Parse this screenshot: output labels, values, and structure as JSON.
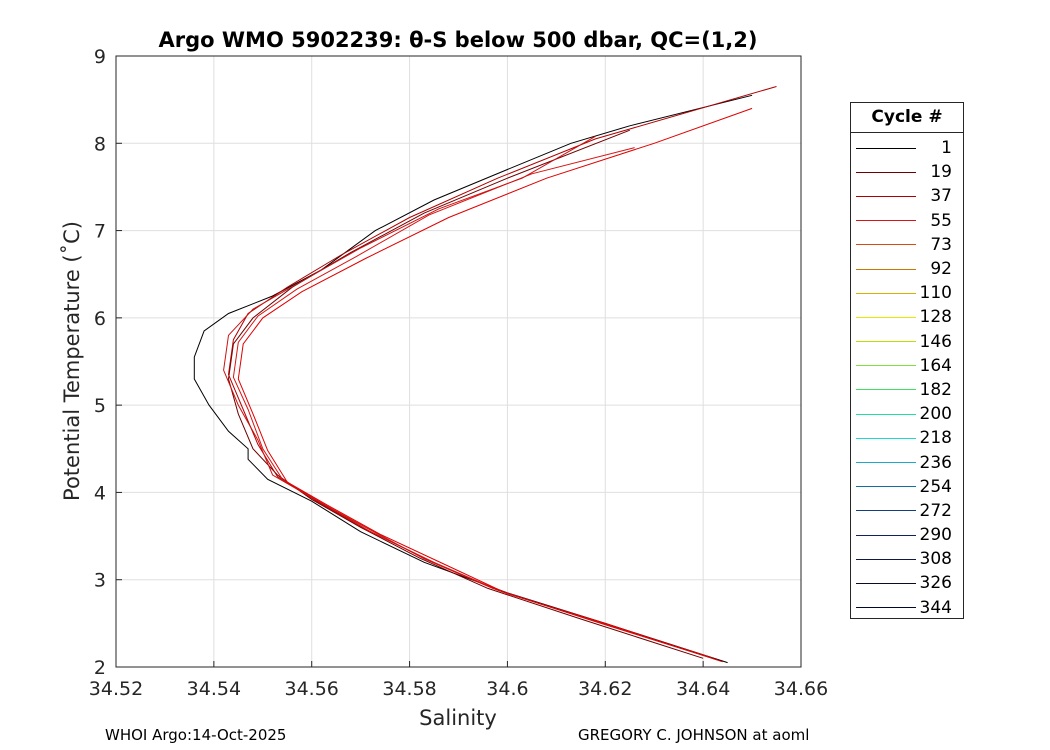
{
  "chart_data": {
    "type": "line",
    "title": "Argo WMO 5902239: θ-S below 500 dbar,  QC=(1,2)",
    "xlabel": "Salinity",
    "ylabel": "Potential Temperature (˚C)",
    "xlim": [
      34.52,
      34.66
    ],
    "ylim": [
      2,
      9
    ],
    "xticks": [
      34.52,
      34.54,
      34.56,
      34.58,
      34.6,
      34.62,
      34.64,
      34.66
    ],
    "xtick_labels": [
      "34.52",
      "34.54",
      "34.56",
      "34.58",
      "34.6",
      "34.62",
      "34.64",
      "34.66"
    ],
    "yticks": [
      2,
      3,
      4,
      5,
      6,
      7,
      8,
      9
    ],
    "ytick_labels": [
      "2",
      "3",
      "4",
      "5",
      "6",
      "7",
      "8",
      "9"
    ],
    "grid": true,
    "legend": {
      "title": "Cycle #",
      "placement": "right, outside axes",
      "entries": [
        {
          "label": "1",
          "color": "#000000"
        },
        {
          "label": "19",
          "color": "#6e0000"
        },
        {
          "label": "37",
          "color": "#b00000"
        },
        {
          "label": "55",
          "color": "#d81414"
        },
        {
          "label": "73",
          "color": "#d84a14"
        },
        {
          "label": "92",
          "color": "#c87800"
        },
        {
          "label": "110",
          "color": "#d8b000"
        },
        {
          "label": "128",
          "color": "#e8e800"
        },
        {
          "label": "146",
          "color": "#b8e000"
        },
        {
          "label": "164",
          "color": "#80e040"
        },
        {
          "label": "182",
          "color": "#40e060"
        },
        {
          "label": "200",
          "color": "#20e0a0"
        },
        {
          "label": "218",
          "color": "#20d8d0"
        },
        {
          "label": "236",
          "color": "#20a8c8"
        },
        {
          "label": "254",
          "color": "#1070a0"
        },
        {
          "label": "272",
          "color": "#104080"
        },
        {
          "label": "290",
          "color": "#102060"
        },
        {
          "label": "308",
          "color": "#101848"
        },
        {
          "label": "326",
          "color": "#080c28"
        },
        {
          "label": "344",
          "color": "#000830"
        }
      ]
    },
    "series": [
      {
        "color": "#000000",
        "points": [
          [
            34.645,
            2.05
          ],
          [
            34.62,
            2.5
          ],
          [
            34.6,
            2.85
          ],
          [
            34.583,
            3.2
          ],
          [
            34.57,
            3.55
          ],
          [
            34.56,
            3.9
          ],
          [
            34.551,
            4.15
          ],
          [
            34.547,
            4.38
          ],
          [
            34.547,
            4.5
          ],
          [
            34.543,
            4.7
          ],
          [
            34.539,
            5.0
          ],
          [
            34.536,
            5.3
          ],
          [
            34.536,
            5.55
          ],
          [
            34.538,
            5.85
          ],
          [
            34.543,
            6.05
          ],
          [
            34.552,
            6.25
          ],
          [
            34.562,
            6.55
          ],
          [
            34.573,
            7.0
          ],
          [
            34.585,
            7.35
          ],
          [
            34.6,
            7.7
          ],
          [
            34.613,
            8.0
          ],
          [
            34.625,
            8.2
          ],
          [
            34.65,
            8.55
          ]
        ]
      },
      {
        "color": "#6e0000",
        "points": [
          [
            34.64,
            2.1
          ],
          [
            34.615,
            2.55
          ],
          [
            34.596,
            2.9
          ],
          [
            34.582,
            3.25
          ],
          [
            34.57,
            3.6
          ],
          [
            34.56,
            3.92
          ],
          [
            34.553,
            4.2
          ],
          [
            34.548,
            4.5
          ],
          [
            34.545,
            4.9
          ],
          [
            34.543,
            5.3
          ],
          [
            34.544,
            5.7
          ],
          [
            34.548,
            6.0
          ],
          [
            34.556,
            6.35
          ],
          [
            34.568,
            6.75
          ],
          [
            34.583,
            7.2
          ],
          [
            34.6,
            7.6
          ],
          [
            34.625,
            8.15
          ]
        ]
      },
      {
        "color": "#b00000",
        "points": [
          [
            34.643,
            2.08
          ],
          [
            34.618,
            2.52
          ],
          [
            34.598,
            2.88
          ],
          [
            34.584,
            3.22
          ],
          [
            34.571,
            3.58
          ],
          [
            34.561,
            3.9
          ],
          [
            34.553,
            4.18
          ],
          [
            34.549,
            4.55
          ],
          [
            34.546,
            4.95
          ],
          [
            34.543,
            5.35
          ],
          [
            34.544,
            5.75
          ],
          [
            34.547,
            6.05
          ],
          [
            34.555,
            6.35
          ],
          [
            34.566,
            6.72
          ],
          [
            34.58,
            7.15
          ],
          [
            34.598,
            7.6
          ],
          [
            34.618,
            8.05
          ],
          [
            34.655,
            8.65
          ]
        ]
      },
      {
        "color": "#d81414",
        "points": [
          [
            34.642,
            2.1
          ],
          [
            34.617,
            2.54
          ],
          [
            34.599,
            2.86
          ],
          [
            34.585,
            3.2
          ],
          [
            34.572,
            3.55
          ],
          [
            34.562,
            3.88
          ],
          [
            34.554,
            4.15
          ],
          [
            34.55,
            4.5
          ],
          [
            34.547,
            4.95
          ],
          [
            34.544,
            5.32
          ],
          [
            34.545,
            5.72
          ],
          [
            34.549,
            6.02
          ],
          [
            34.557,
            6.33
          ],
          [
            34.569,
            6.7
          ],
          [
            34.584,
            7.18
          ],
          [
            34.605,
            7.65
          ],
          [
            34.626,
            7.95
          ]
        ]
      },
      {
        "color": "#cc1111",
        "points": [
          [
            34.641,
            2.12
          ],
          [
            34.616,
            2.56
          ],
          [
            34.597,
            2.9
          ],
          [
            34.583,
            3.24
          ],
          [
            34.571,
            3.6
          ],
          [
            34.56,
            3.94
          ],
          [
            34.552,
            4.2
          ],
          [
            34.549,
            4.6
          ],
          [
            34.545,
            5.0
          ],
          [
            34.542,
            5.4
          ],
          [
            34.543,
            5.8
          ],
          [
            34.548,
            6.1
          ],
          [
            34.558,
            6.42
          ],
          [
            34.57,
            6.8
          ],
          [
            34.586,
            7.25
          ],
          [
            34.603,
            7.6
          ],
          [
            34.618,
            8.08
          ]
        ]
      },
      {
        "color": "#e00000",
        "points": [
          [
            34.644,
            2.06
          ],
          [
            34.62,
            2.5
          ],
          [
            34.6,
            2.84
          ],
          [
            34.587,
            3.18
          ],
          [
            34.574,
            3.52
          ],
          [
            34.563,
            3.86
          ],
          [
            34.555,
            4.12
          ],
          [
            34.551,
            4.48
          ],
          [
            34.548,
            4.9
          ],
          [
            34.545,
            5.3
          ],
          [
            34.546,
            5.7
          ],
          [
            34.55,
            6.0
          ],
          [
            34.558,
            6.3
          ],
          [
            34.571,
            6.68
          ],
          [
            34.588,
            7.15
          ],
          [
            34.608,
            7.6
          ],
          [
            34.63,
            8.0
          ],
          [
            34.65,
            8.4
          ]
        ]
      }
    ]
  },
  "footer": {
    "left": "WHOI Argo:14-Oct-2025",
    "right": "GREGORY C. JOHNSON at aoml"
  }
}
